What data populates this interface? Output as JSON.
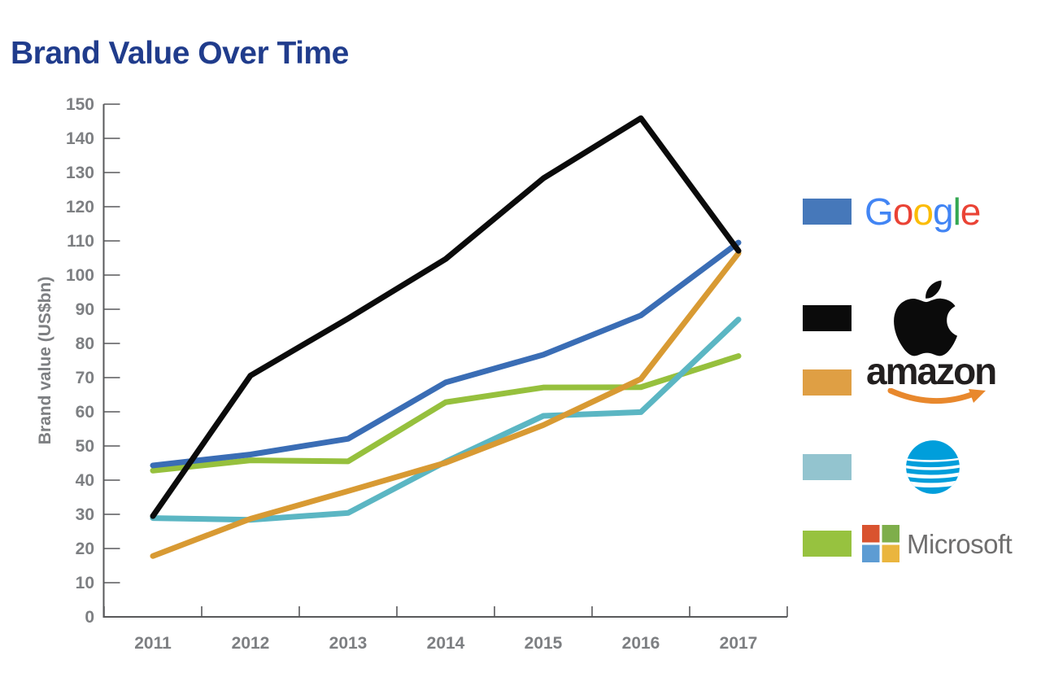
{
  "title": "Brand Value Over Time",
  "chart_data": {
    "type": "line",
    "title": "Brand Value Over Time",
    "x": [
      "2011",
      "2012",
      "2013",
      "2014",
      "2015",
      "2016",
      "2017"
    ],
    "xlabel": "",
    "ylabel": "Brand value (US$bn)",
    "ylim": [
      0,
      150
    ],
    "ytick_step": 10,
    "y_tick_labels": [
      "0",
      "10",
      "20",
      "30",
      "40",
      "50",
      "60",
      "70",
      "80",
      "90",
      "100",
      "110",
      "120",
      "130",
      "140",
      "150"
    ],
    "grid": false,
    "legend_position": "right",
    "series": [
      {
        "name": "Google",
        "color": "#3a6db5",
        "values": [
          44.3,
          47.5,
          52.1,
          68.6,
          76.7,
          88.2,
          109.5
        ]
      },
      {
        "name": "Apple",
        "color": "#0b0b0b",
        "values": [
          29.5,
          70.6,
          87.3,
          104.7,
          128.3,
          145.9,
          107.1
        ]
      },
      {
        "name": "Amazon",
        "color": "#d89a33",
        "values": [
          17.8,
          28.7,
          36.8,
          45.1,
          56.1,
          69.6,
          106.4
        ]
      },
      {
        "name": "AT&T",
        "color": "#5bb6c3",
        "values": [
          28.9,
          28.4,
          30.4,
          45.4,
          58.8,
          59.9,
          87.0
        ]
      },
      {
        "name": "Microsoft",
        "color": "#96c03d",
        "values": [
          42.8,
          45.8,
          45.5,
          62.8,
          67.1,
          67.2,
          76.3
        ]
      }
    ]
  },
  "colors": {
    "title": "#203c8c",
    "axis": "#58595b",
    "tick_label": "#7d7f82"
  },
  "legend": {
    "items": [
      {
        "name": "Google",
        "swatch": "#4678ba",
        "logo_letters": [
          {
            "ch": "G",
            "color": "#4285f4"
          },
          {
            "ch": "o",
            "color": "#ea4335"
          },
          {
            "ch": "o",
            "color": "#fbbc05"
          },
          {
            "ch": "g",
            "color": "#4285f4"
          },
          {
            "ch": "l",
            "color": "#34a853"
          },
          {
            "ch": "e",
            "color": "#ea4335"
          }
        ]
      },
      {
        "name": "Apple",
        "swatch": "#0b0b0b",
        "logo_color": "#0b0b0b"
      },
      {
        "name": "Amazon",
        "swatch": "#df9f44",
        "logo_text": "amazon",
        "logo_text_color": "#221f1f",
        "smile_color": "#e8882d"
      },
      {
        "name": "AT&T",
        "swatch": "#93c4cf",
        "globe_color": "#009edb"
      },
      {
        "name": "Microsoft",
        "swatch": "#97c23f",
        "logo_text": "Microsoft",
        "logo_text_color": "#706f6f",
        "tiles": {
          "tl": "#d9532f",
          "tr": "#7eae4b",
          "bl": "#5d9cd3",
          "br": "#eab53e"
        }
      }
    ]
  }
}
